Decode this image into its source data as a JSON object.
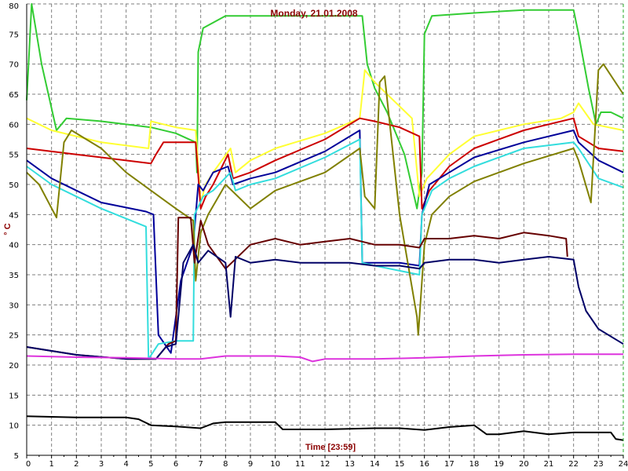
{
  "chart_data": {
    "type": "line",
    "title": "Monday, 21.01.2008",
    "xlabel": "Time [23:59]",
    "ylabel": "° C",
    "xlim": [
      0,
      24
    ],
    "ylim": [
      5,
      80
    ],
    "xticks": [
      "0",
      "1",
      "2",
      "3",
      "4",
      "5",
      "6",
      "7",
      "8",
      "9",
      "10",
      "11",
      "12",
      "13",
      "14",
      "15",
      "16",
      "17",
      "18",
      "19",
      "20",
      "21",
      "22",
      "23",
      "24"
    ],
    "yticks": [
      "5",
      "10",
      "15",
      "20",
      "25",
      "30",
      "35",
      "40",
      "45",
      "50",
      "55",
      "60",
      "65",
      "70",
      "75",
      "80"
    ],
    "grid": true,
    "series": [
      {
        "color": "#33cc33",
        "points": [
          [
            0,
            64
          ],
          [
            0.2,
            80
          ],
          [
            0.6,
            70
          ],
          [
            1.2,
            59
          ],
          [
            1.6,
            61
          ],
          [
            3,
            60.5
          ],
          [
            5,
            59.5
          ],
          [
            6,
            58.5
          ],
          [
            6.8,
            57
          ],
          [
            6.85,
            52
          ],
          [
            6.9,
            72
          ],
          [
            7.1,
            76
          ],
          [
            8,
            78
          ],
          [
            10,
            78
          ],
          [
            12,
            78
          ],
          [
            13.5,
            78
          ],
          [
            13.7,
            70
          ],
          [
            14,
            66
          ],
          [
            14.5,
            62
          ],
          [
            15.2,
            55
          ],
          [
            15.7,
            46
          ],
          [
            15.9,
            52
          ],
          [
            16,
            75
          ],
          [
            16.3,
            78
          ],
          [
            18,
            78.5
          ],
          [
            20,
            79
          ],
          [
            22,
            79
          ],
          [
            22.2,
            75
          ],
          [
            22.6,
            66
          ],
          [
            22.9,
            60
          ],
          [
            23.1,
            62
          ],
          [
            23.5,
            62
          ],
          [
            24,
            61
          ]
        ]
      },
      {
        "color": "#ffff33",
        "points": [
          [
            0,
            61
          ],
          [
            1,
            59
          ],
          [
            3,
            57
          ],
          [
            4.9,
            56
          ],
          [
            5.0,
            60.5
          ],
          [
            6,
            59.5
          ],
          [
            6.8,
            59
          ],
          [
            7,
            47
          ],
          [
            7.2,
            50
          ],
          [
            7.5,
            52
          ],
          [
            8.2,
            56
          ],
          [
            8.4,
            52
          ],
          [
            9,
            54
          ],
          [
            10,
            56
          ],
          [
            12,
            58.5
          ],
          [
            13.4,
            61
          ],
          [
            13.6,
            69
          ],
          [
            14,
            67
          ],
          [
            15.5,
            61
          ],
          [
            15.8,
            48
          ],
          [
            16.1,
            51
          ],
          [
            17,
            55
          ],
          [
            18,
            58
          ],
          [
            20,
            60
          ],
          [
            21.5,
            61
          ],
          [
            22,
            62
          ],
          [
            22.2,
            63.5
          ],
          [
            22.8,
            60
          ],
          [
            24,
            59
          ]
        ]
      },
      {
        "color": "#cc0000",
        "points": [
          [
            0,
            56
          ],
          [
            2,
            55
          ],
          [
            5,
            53.5
          ],
          [
            5.2,
            55
          ],
          [
            5.5,
            57
          ],
          [
            6.5,
            57
          ],
          [
            6.8,
            57
          ],
          [
            7,
            46
          ],
          [
            7.2,
            48
          ],
          [
            7.5,
            50
          ],
          [
            8.1,
            55
          ],
          [
            8.3,
            51
          ],
          [
            9,
            52
          ],
          [
            10,
            54
          ],
          [
            12,
            57.5
          ],
          [
            13.4,
            61
          ],
          [
            14,
            60.5
          ],
          [
            15,
            59.5
          ],
          [
            15.8,
            58
          ],
          [
            15.9,
            46
          ],
          [
            16.2,
            49
          ],
          [
            17,
            53
          ],
          [
            18,
            56
          ],
          [
            20,
            59
          ],
          [
            22,
            61
          ],
          [
            22.2,
            58
          ],
          [
            23,
            56
          ],
          [
            24,
            55.5
          ]
        ]
      },
      {
        "color": "#000099",
        "points": [
          [
            0,
            54
          ],
          [
            1,
            51
          ],
          [
            2,
            49
          ],
          [
            3,
            47
          ],
          [
            4.8,
            45.5
          ],
          [
            5.1,
            45
          ],
          [
            5.3,
            25
          ],
          [
            5.8,
            22
          ],
          [
            6.2,
            34
          ],
          [
            6.7,
            40
          ],
          [
            6.9,
            50
          ],
          [
            7.1,
            49
          ],
          [
            7.5,
            52
          ],
          [
            8.1,
            53
          ],
          [
            8.3,
            50
          ],
          [
            9,
            51
          ],
          [
            10,
            52
          ],
          [
            12,
            55.5
          ],
          [
            13.4,
            59
          ],
          [
            13.5,
            37
          ],
          [
            14,
            37
          ],
          [
            15,
            37
          ],
          [
            15.8,
            36.5
          ],
          [
            15.9,
            45
          ],
          [
            16.2,
            50
          ],
          [
            17,
            52
          ],
          [
            18,
            54.5
          ],
          [
            20,
            57
          ],
          [
            22,
            59
          ],
          [
            22.2,
            57
          ],
          [
            23,
            54
          ],
          [
            24,
            52
          ]
        ]
      },
      {
        "color": "#33dddd",
        "points": [
          [
            0,
            53
          ],
          [
            1,
            50
          ],
          [
            2,
            48
          ],
          [
            3,
            46
          ],
          [
            4.8,
            43
          ],
          [
            4.9,
            21
          ],
          [
            5.3,
            23.5
          ],
          [
            6,
            24
          ],
          [
            6.7,
            24
          ],
          [
            6.75,
            45
          ],
          [
            7.1,
            48
          ],
          [
            7.5,
            49
          ],
          [
            8.2,
            52
          ],
          [
            8.4,
            49
          ],
          [
            9,
            50
          ],
          [
            10,
            51
          ],
          [
            12,
            54.5
          ],
          [
            13.4,
            57.5
          ],
          [
            13.5,
            37
          ],
          [
            14,
            36.5
          ],
          [
            15.8,
            35
          ],
          [
            15.9,
            45
          ],
          [
            16.3,
            49
          ],
          [
            17,
            51
          ],
          [
            18,
            53
          ],
          [
            20,
            56
          ],
          [
            22,
            57
          ],
          [
            22.2,
            56
          ],
          [
            23,
            51
          ],
          [
            24,
            49.5
          ]
        ]
      },
      {
        "color": "#808000",
        "points": [
          [
            0,
            52
          ],
          [
            0.5,
            50
          ],
          [
            1.2,
            44.5
          ],
          [
            1.5,
            57
          ],
          [
            1.8,
            59
          ],
          [
            3,
            56
          ],
          [
            4,
            52
          ],
          [
            5,
            49
          ],
          [
            6,
            46
          ],
          [
            6.7,
            44
          ],
          [
            6.8,
            34
          ],
          [
            7.0,
            42
          ],
          [
            7.3,
            45
          ],
          [
            8,
            50
          ],
          [
            9,
            46
          ],
          [
            10,
            49
          ],
          [
            12,
            52
          ],
          [
            13.4,
            56
          ],
          [
            13.6,
            48
          ],
          [
            14,
            46
          ],
          [
            14.2,
            67
          ],
          [
            14.4,
            68
          ],
          [
            15,
            45
          ],
          [
            15.7,
            28
          ],
          [
            15.75,
            25
          ],
          [
            16,
            40
          ],
          [
            16.3,
            45
          ],
          [
            17,
            48
          ],
          [
            18,
            50.5
          ],
          [
            20,
            53.5
          ],
          [
            22,
            56
          ],
          [
            22.2,
            54
          ],
          [
            22.7,
            47
          ],
          [
            23,
            69
          ],
          [
            23.2,
            70
          ],
          [
            24,
            65
          ]
        ]
      },
      {
        "color": "#660000",
        "points": [
          [
            0,
            23
          ],
          [
            2,
            21.7
          ],
          [
            4,
            21
          ],
          [
            5.2,
            21
          ],
          [
            5.7,
            23.5
          ],
          [
            6.0,
            24
          ],
          [
            6.1,
            44.5
          ],
          [
            6.6,
            44.5
          ],
          [
            6.75,
            37
          ],
          [
            7.0,
            44
          ],
          [
            7.3,
            40
          ],
          [
            8,
            36
          ],
          [
            9,
            40
          ],
          [
            10,
            41
          ],
          [
            11,
            40
          ],
          [
            12,
            40.5
          ],
          [
            13,
            41
          ],
          [
            14,
            40
          ],
          [
            15,
            40
          ],
          [
            15.8,
            39.5
          ],
          [
            16,
            41
          ],
          [
            17,
            41
          ],
          [
            18,
            41.5
          ],
          [
            19,
            41
          ],
          [
            20,
            42
          ],
          [
            21,
            41.5
          ],
          [
            21.7,
            41
          ],
          [
            21.75,
            38
          ]
        ]
      },
      {
        "color": "#000066",
        "points": [
          [
            0,
            23
          ],
          [
            2,
            21.7
          ],
          [
            4,
            21
          ],
          [
            5.2,
            21
          ],
          [
            5.6,
            23
          ],
          [
            6.0,
            23.5
          ],
          [
            6.3,
            37
          ],
          [
            6.7,
            40
          ],
          [
            6.9,
            37
          ],
          [
            7.3,
            39
          ],
          [
            8.0,
            37
          ],
          [
            8.2,
            28
          ],
          [
            8.4,
            38
          ],
          [
            9,
            37
          ],
          [
            10,
            37.5
          ],
          [
            11,
            37
          ],
          [
            12,
            37
          ],
          [
            13,
            37
          ],
          [
            14,
            36.5
          ],
          [
            15,
            36.5
          ],
          [
            15.8,
            36
          ],
          [
            16,
            37
          ],
          [
            17,
            37.5
          ],
          [
            18,
            37.5
          ],
          [
            19,
            37
          ],
          [
            20,
            37.5
          ],
          [
            21,
            38
          ],
          [
            22,
            37.5
          ],
          [
            22.2,
            33
          ],
          [
            22.5,
            29
          ],
          [
            23,
            26
          ],
          [
            24,
            23.5
          ]
        ]
      },
      {
        "color": "#dd33dd",
        "points": [
          [
            0,
            21.5
          ],
          [
            2,
            21.3
          ],
          [
            4,
            21.2
          ],
          [
            6,
            21
          ],
          [
            7,
            21
          ],
          [
            8,
            21.5
          ],
          [
            10,
            21.5
          ],
          [
            11,
            21.3
          ],
          [
            11.5,
            20.6
          ],
          [
            12,
            21
          ],
          [
            14,
            21
          ],
          [
            16,
            21.2
          ],
          [
            18,
            21.5
          ],
          [
            20,
            21.7
          ],
          [
            22,
            21.8
          ],
          [
            24,
            21.8
          ]
        ]
      },
      {
        "color": "#000000",
        "points": [
          [
            0,
            11.5
          ],
          [
            2,
            11.3
          ],
          [
            4,
            11.3
          ],
          [
            4.5,
            11
          ],
          [
            5,
            10
          ],
          [
            6,
            9.8
          ],
          [
            7,
            9.5
          ],
          [
            7.5,
            10.3
          ],
          [
            8,
            10.5
          ],
          [
            10,
            10.5
          ],
          [
            10.3,
            9.3
          ],
          [
            11,
            9.3
          ],
          [
            12,
            9.3
          ],
          [
            14,
            9.5
          ],
          [
            15,
            9.5
          ],
          [
            16,
            9.2
          ],
          [
            17,
            9.7
          ],
          [
            18,
            10
          ],
          [
            18.5,
            8.5
          ],
          [
            19,
            8.5
          ],
          [
            20,
            9
          ],
          [
            21,
            8.5
          ],
          [
            22,
            8.8
          ],
          [
            23.5,
            8.8
          ],
          [
            23.7,
            7.7
          ],
          [
            24,
            7.5
          ]
        ]
      }
    ]
  }
}
